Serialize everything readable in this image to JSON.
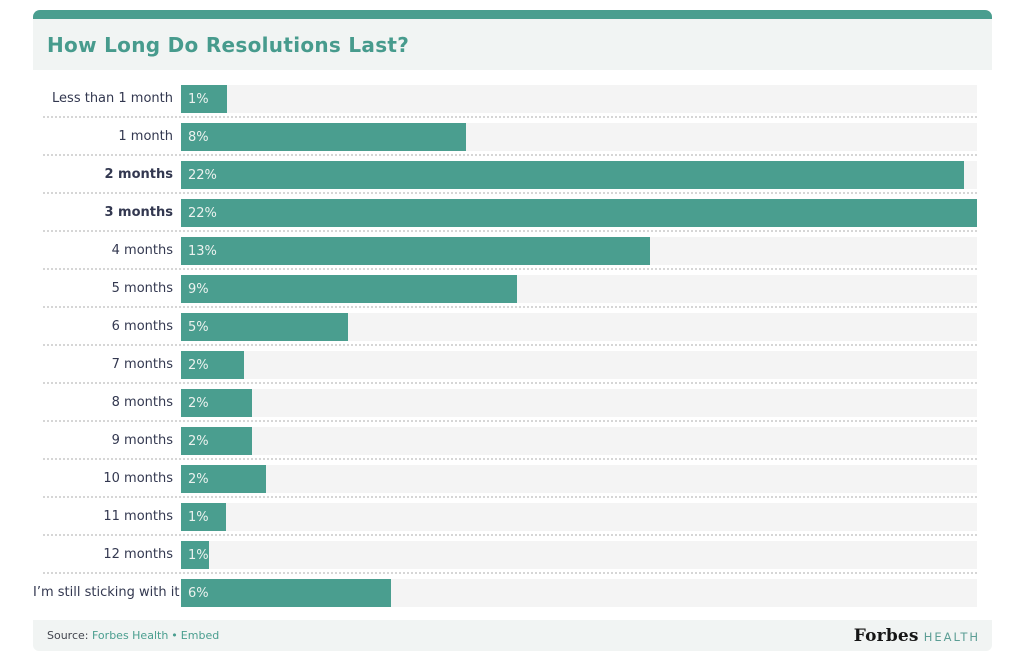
{
  "header": {
    "title": "How Long Do Resolutions Last?",
    "accent_bar_color": "#4A9E8F",
    "band_color": "#F1F4F3",
    "title_color": "#479B8D"
  },
  "chart_data": {
    "type": "bar",
    "orientation": "horizontal",
    "title": "How Long Do Resolutions Last?",
    "categories": [
      "Less than 1 month",
      "1 month",
      "2 months",
      "3 months",
      "4 months",
      "5 months",
      "6 months",
      "7 months",
      "8 months",
      "9 months",
      "10 months",
      "11 months",
      "12 months",
      "I’m still sticking with it"
    ],
    "values": [
      1,
      8,
      22,
      22,
      13,
      9,
      5,
      2,
      2,
      2,
      2,
      1,
      1,
      6
    ],
    "value_labels": [
      "1%",
      "8%",
      "22%",
      "22%",
      "13%",
      "9%",
      "5%",
      "2%",
      "2%",
      "2%",
      "2%",
      "1%",
      "1%",
      "6%"
    ],
    "unit": "%",
    "xlim": [
      0,
      22
    ],
    "bar_color": "#4A9E8F",
    "track_color": "#F4F4F4",
    "label_color": "#333850",
    "bold_category_indices": [
      2,
      3
    ],
    "bar_length_pct_of_track": [
      5.8,
      35.8,
      98.4,
      100,
      58.9,
      42.2,
      21,
      7.9,
      8.9,
      8.9,
      10.7,
      5.6,
      3.5,
      26.4
    ],
    "grid": "dotted row separators",
    "legend": "none"
  },
  "footer": {
    "source_label": "Source:",
    "links": [
      {
        "label": "Forbes Health"
      },
      {
        "label": "Embed"
      }
    ],
    "separator": "•",
    "link_color": "#4A9E8F",
    "brand": {
      "name": "Forbes",
      "suffix": "HEALTH"
    }
  }
}
